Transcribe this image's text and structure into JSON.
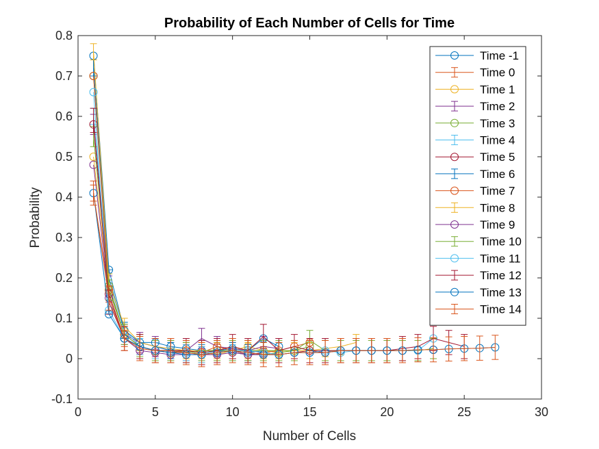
{
  "chart_data": {
    "type": "line",
    "title": "Probability of Each Number of Cells for Time",
    "xlabel": "Number of Cells",
    "ylabel": "Probability",
    "xlim": [
      0,
      30
    ],
    "ylim": [
      -0.1,
      0.8
    ],
    "xticks": [
      0,
      5,
      10,
      15,
      20,
      25,
      30
    ],
    "yticks": [
      -0.1,
      0,
      0.1,
      0.2,
      0.3,
      0.4,
      0.5,
      0.6,
      0.7,
      0.8
    ],
    "grid": false,
    "legend_position": "top-right",
    "series": [
      {
        "name": "Time -1",
        "color": "#0072BD",
        "style": "circle",
        "x": [
          1,
          2,
          3,
          4,
          5,
          6,
          7,
          8,
          9,
          10,
          11,
          12,
          13
        ],
        "y": [
          0.75,
          0.22,
          0.07,
          0.04,
          0.04,
          0.03,
          0.025,
          0.02,
          0.02,
          0.025,
          0.02,
          0.05,
          0.03
        ]
      },
      {
        "name": "Time 0",
        "color": "#D95319",
        "style": "errorbar",
        "err": 0.02,
        "x": [
          1,
          2,
          3,
          4,
          5,
          6,
          7,
          8,
          9,
          10,
          11,
          12
        ],
        "y": [
          0.41,
          0.16,
          0.05,
          0.03,
          0.02,
          0.02,
          0.015,
          0.01,
          0.015,
          0.02,
          0.015,
          0.01
        ]
      },
      {
        "name": "Time 1",
        "color": "#EDB120",
        "style": "circle",
        "x": [
          1,
          2,
          3,
          4,
          5,
          6,
          7,
          8,
          9,
          10,
          11,
          12,
          13,
          14
        ],
        "y": [
          0.5,
          0.17,
          0.06,
          0.03,
          0.02,
          0.02,
          0.02,
          0.015,
          0.01,
          0.02,
          0.03,
          0.02,
          0.015,
          0.02
        ]
      },
      {
        "name": "Time 2",
        "color": "#7E2F8E",
        "style": "errorbar",
        "err": 0.025,
        "x": [
          1,
          2,
          3,
          4,
          5,
          6,
          7,
          8,
          9,
          10,
          11,
          12,
          13
        ],
        "y": [
          0.58,
          0.18,
          0.06,
          0.04,
          0.03,
          0.02,
          0.02,
          0.05,
          0.03,
          0.025,
          0.02,
          0.03,
          0.025
        ]
      },
      {
        "name": "Time 3",
        "color": "#77AC30",
        "style": "circle",
        "x": [
          1,
          2,
          3,
          4,
          5,
          6,
          7,
          8,
          9,
          10,
          11,
          12,
          13,
          14,
          15
        ],
        "y": [
          0.7,
          0.18,
          0.06,
          0.03,
          0.02,
          0.015,
          0.02,
          0.01,
          0.02,
          0.015,
          0.01,
          0.01,
          0.015,
          0.02,
          0.03
        ]
      },
      {
        "name": "Time 4",
        "color": "#4DBEEE",
        "style": "errorbar",
        "err": 0.02,
        "x": [
          1,
          2,
          3,
          4,
          5,
          6,
          7,
          8,
          9,
          10,
          11
        ],
        "y": [
          0.6,
          0.19,
          0.07,
          0.03,
          0.02,
          0.02,
          0.015,
          0.01,
          0.02,
          0.015,
          0.01
        ]
      },
      {
        "name": "Time 5",
        "color": "#A2142F",
        "style": "circle",
        "x": [
          1,
          2,
          3,
          4,
          5,
          6,
          7,
          8,
          9,
          10,
          11,
          12,
          13,
          14,
          15,
          16,
          17,
          18,
          19,
          20,
          21,
          22,
          23
        ],
        "y": [
          0.58,
          0.16,
          0.05,
          0.03,
          0.02,
          0.015,
          0.015,
          0.01,
          0.015,
          0.02,
          0.01,
          0.015,
          0.01,
          0.015,
          0.02,
          0.015,
          0.02,
          0.02,
          0.02,
          0.02,
          0.02,
          0.022,
          0.022
        ]
      },
      {
        "name": "Time 6",
        "color": "#0072BD",
        "style": "errorbar",
        "err": 0.02,
        "x": [
          1,
          2,
          3,
          4,
          5,
          6,
          7,
          8,
          9,
          10,
          11,
          12
        ],
        "y": [
          0.72,
          0.2,
          0.07,
          0.04,
          0.03,
          0.02,
          0.02,
          0.015,
          0.02,
          0.02,
          0.015,
          0.02
        ]
      },
      {
        "name": "Time 7",
        "color": "#D95319",
        "style": "circle",
        "x": [
          1,
          2,
          3,
          4,
          5,
          6,
          7,
          8,
          9,
          10,
          11,
          12,
          13,
          14,
          15
        ],
        "y": [
          0.7,
          0.17,
          0.06,
          0.03,
          0.02,
          0.02,
          0.02,
          0.015,
          0.03,
          0.02,
          0.02,
          0.015,
          0.02,
          0.03,
          0.04
        ]
      },
      {
        "name": "Time 8",
        "color": "#EDB120",
        "style": "errorbar",
        "err": 0.02,
        "x": [
          1,
          2,
          3,
          4,
          5,
          6,
          7,
          8,
          9,
          10,
          11,
          12,
          13,
          14,
          15,
          16,
          17,
          18
        ],
        "y": [
          0.76,
          0.19,
          0.08,
          0.04,
          0.03,
          0.025,
          0.02,
          0.02,
          0.02,
          0.03,
          0.02,
          0.02,
          0.02,
          0.02,
          0.02,
          0.025,
          0.03,
          0.04
        ]
      },
      {
        "name": "Time 9",
        "color": "#7E2F8E",
        "style": "circle",
        "x": [
          1,
          2,
          3,
          4,
          5,
          6,
          7,
          8,
          9,
          10,
          11,
          12,
          13
        ],
        "y": [
          0.48,
          0.15,
          0.05,
          0.02,
          0.015,
          0.01,
          0.01,
          0.01,
          0.01,
          0.015,
          0.01,
          0.01,
          0.01
        ]
      },
      {
        "name": "Time 10",
        "color": "#77AC30",
        "style": "errorbar",
        "err": 0.025,
        "x": [
          1,
          2,
          3,
          4,
          5,
          6,
          7,
          8,
          9,
          10,
          11,
          12,
          13,
          14,
          15,
          16,
          17,
          18,
          19,
          20,
          21,
          22,
          23
        ],
        "y": [
          0.55,
          0.17,
          0.06,
          0.03,
          0.02,
          0.02,
          0.015,
          0.02,
          0.02,
          0.02,
          0.02,
          0.02,
          0.02,
          0.02,
          0.045,
          0.02,
          0.02,
          0.02,
          0.02,
          0.02,
          0.02,
          0.02,
          0.025
        ]
      },
      {
        "name": "Time 11",
        "color": "#4DBEEE",
        "style": "circle",
        "x": [
          1,
          2,
          3,
          4,
          5,
          6,
          7,
          8,
          9,
          10,
          11,
          12,
          13,
          14,
          15,
          16,
          17,
          18,
          19,
          20,
          21,
          22,
          23
        ],
        "y": [
          0.66,
          0.12,
          0.05,
          0.03,
          0.02,
          0.02,
          0.015,
          0.01,
          0.015,
          0.02,
          0.02,
          0.015,
          0.01,
          0.015,
          0.015,
          0.02,
          0.015,
          0.02,
          0.02,
          0.02,
          0.02,
          0.02,
          0.05
        ]
      },
      {
        "name": "Time 12",
        "color": "#A2142F",
        "style": "errorbar",
        "err": 0.03,
        "x": [
          1,
          2,
          3,
          4,
          5,
          6,
          7,
          8,
          9,
          10,
          11,
          12,
          13,
          14,
          15,
          16,
          17,
          18,
          19,
          20,
          21,
          22,
          23,
          24,
          25
        ],
        "y": [
          0.59,
          0.14,
          0.05,
          0.03,
          0.02,
          0.02,
          0.02,
          0.015,
          0.02,
          0.03,
          0.02,
          0.055,
          0.02,
          0.03,
          0.02,
          0.02,
          0.02,
          0.02,
          0.02,
          0.02,
          0.025,
          0.03,
          0.05,
          0.04,
          0.03
        ]
      },
      {
        "name": "Time 13",
        "color": "#0072BD",
        "style": "circle",
        "x": [
          1,
          2,
          3,
          4,
          5,
          6,
          7,
          8,
          9,
          10,
          11,
          12,
          13,
          14,
          15,
          16,
          17,
          18,
          19,
          20,
          21,
          22,
          23,
          24,
          25,
          26,
          27
        ],
        "y": [
          0.41,
          0.11,
          0.05,
          0.03,
          0.02,
          0.015,
          0.01,
          0.01,
          0.015,
          0.02,
          0.015,
          0.01,
          0.01,
          0.015,
          0.015,
          0.015,
          0.02,
          0.02,
          0.02,
          0.02,
          0.02,
          0.022,
          0.022,
          0.024,
          0.025,
          0.026,
          0.028
        ]
      },
      {
        "name": "Time 14",
        "color": "#D95319",
        "style": "errorbar",
        "err": 0.03,
        "x": [
          1,
          2,
          3,
          4,
          5,
          6,
          7,
          8,
          9,
          10,
          11,
          12,
          13,
          14,
          15,
          16,
          17,
          18,
          19,
          20,
          21,
          22,
          23,
          24,
          25,
          26,
          27
        ],
        "y": [
          0.41,
          0.15,
          0.05,
          0.025,
          0.02,
          0.02,
          0.015,
          0.01,
          0.015,
          0.02,
          0.015,
          0.01,
          0.01,
          0.015,
          0.015,
          0.015,
          0.02,
          0.02,
          0.02,
          0.02,
          0.02,
          0.022,
          0.022,
          0.024,
          0.025,
          0.026,
          0.028
        ]
      }
    ]
  }
}
